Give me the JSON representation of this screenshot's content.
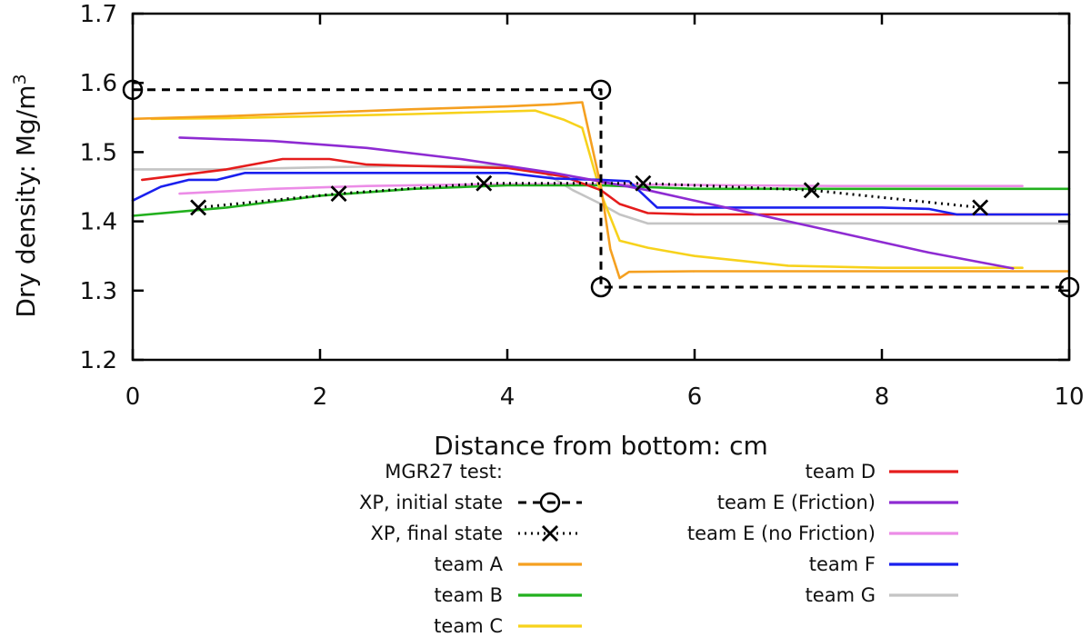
{
  "chart_data": {
    "type": "line",
    "title": "",
    "xlabel": "Distance from bottom: cm",
    "ylabel": "Dry density: Mg/m",
    "ylabel_superscript": "3",
    "xlim": [
      0,
      10
    ],
    "ylim": [
      1.2,
      1.7
    ],
    "xticks": [
      0,
      2,
      4,
      6,
      8,
      10
    ],
    "xtick_labels": [
      "0",
      "2",
      "4",
      "6",
      "8",
      "10"
    ],
    "yticks": [
      1.2,
      1.3,
      1.4,
      1.5,
      1.6,
      1.7
    ],
    "ytick_labels": [
      "1.2",
      "1.3",
      "1.4",
      "1.5",
      "1.6",
      "1.7"
    ],
    "grid": false,
    "legend_title": "MGR27 test:",
    "legend_position": "below",
    "series": [
      {
        "name": "XP, initial state",
        "color": "#000000",
        "style": "dashed",
        "marker": "circle",
        "x": [
          0,
          5,
          5,
          10
        ],
        "y": [
          1.59,
          1.59,
          1.305,
          1.305
        ],
        "marker_x": [
          0,
          5,
          5,
          10
        ],
        "marker_y": [
          1.59,
          1.59,
          1.305,
          1.305
        ]
      },
      {
        "name": "XP, final state",
        "color": "#000000",
        "style": "dotted",
        "marker": "cross",
        "x": [
          0.7,
          2.2,
          3.75,
          5.45,
          7.25,
          9.05
        ],
        "y": [
          1.42,
          1.44,
          1.455,
          1.455,
          1.445,
          1.42
        ]
      },
      {
        "name": "team A",
        "color": "#f5a020",
        "style": "solid",
        "x": [
          0,
          1,
          2,
          3,
          4,
          4.5,
          4.8,
          5.0,
          5.1,
          5.2,
          5.3,
          6,
          8,
          10
        ],
        "y": [
          1.548,
          1.552,
          1.557,
          1.562,
          1.566,
          1.569,
          1.572,
          1.45,
          1.36,
          1.318,
          1.327,
          1.328,
          1.328,
          1.328
        ]
      },
      {
        "name": "team B",
        "color": "#22b01e",
        "style": "solid",
        "x": [
          0,
          0.5,
          1,
          2,
          3,
          4,
          5,
          6,
          7,
          8,
          10
        ],
        "y": [
          1.408,
          1.414,
          1.42,
          1.437,
          1.447,
          1.452,
          1.452,
          1.447,
          1.447,
          1.447,
          1.447
        ]
      },
      {
        "name": "team C",
        "color": "#f7d21c",
        "style": "solid",
        "x": [
          0.2,
          1,
          2,
          3,
          4.3,
          4.6,
          4.8,
          5.0,
          5.2,
          5.5,
          6,
          7,
          8,
          9.5
        ],
        "y": [
          1.548,
          1.549,
          1.552,
          1.555,
          1.56,
          1.547,
          1.535,
          1.44,
          1.372,
          1.362,
          1.35,
          1.336,
          1.333,
          1.333
        ]
      },
      {
        "name": "team D",
        "color": "#e51c1c",
        "style": "solid",
        "x": [
          0.1,
          1.0,
          1.6,
          2.1,
          2.5,
          3.0,
          4.0,
          4.6,
          5.0,
          5.2,
          5.5,
          6,
          8,
          9.9
        ],
        "y": [
          1.46,
          1.475,
          1.49,
          1.49,
          1.482,
          1.48,
          1.477,
          1.465,
          1.445,
          1.425,
          1.412,
          1.41,
          1.41,
          1.41
        ]
      },
      {
        "name": "team E (Friction)",
        "color": "#8e2bd2",
        "style": "solid",
        "x": [
          0.5,
          1.5,
          2.5,
          3.5,
          4.5,
          5.5,
          6.5,
          7.5,
          8.5,
          9.4
        ],
        "y": [
          1.521,
          1.516,
          1.506,
          1.49,
          1.47,
          1.445,
          1.415,
          1.385,
          1.355,
          1.332
        ]
      },
      {
        "name": "team E (no Friction)",
        "color": "#ec8ce7",
        "style": "solid",
        "x": [
          0.5,
          1.5,
          2.5,
          3.5,
          4.5,
          5,
          5.5,
          6.5,
          7.5,
          8.5,
          9.5
        ],
        "y": [
          1.44,
          1.447,
          1.451,
          1.453,
          1.454,
          1.454,
          1.453,
          1.452,
          1.451,
          1.451,
          1.451
        ]
      },
      {
        "name": "team F",
        "color": "#1a20ee",
        "style": "solid",
        "x": [
          0,
          0.3,
          0.6,
          0.9,
          1.2,
          2,
          3,
          4,
          4.5,
          5,
          5.3,
          5.6,
          6,
          8,
          8.5,
          8.8,
          10
        ],
        "y": [
          1.43,
          1.45,
          1.46,
          1.46,
          1.47,
          1.47,
          1.47,
          1.47,
          1.462,
          1.46,
          1.458,
          1.42,
          1.42,
          1.42,
          1.418,
          1.41,
          1.41
        ]
      },
      {
        "name": "team G",
        "color": "#c4c4c4",
        "style": "solid",
        "x": [
          0,
          1,
          2,
          3,
          4,
          4.4,
          4.7,
          5.0,
          5.2,
          5.5,
          6,
          8,
          10
        ],
        "y": [
          1.475,
          1.475,
          1.478,
          1.48,
          1.48,
          1.47,
          1.445,
          1.425,
          1.41,
          1.397,
          1.397,
          1.397,
          1.397
        ]
      }
    ]
  }
}
